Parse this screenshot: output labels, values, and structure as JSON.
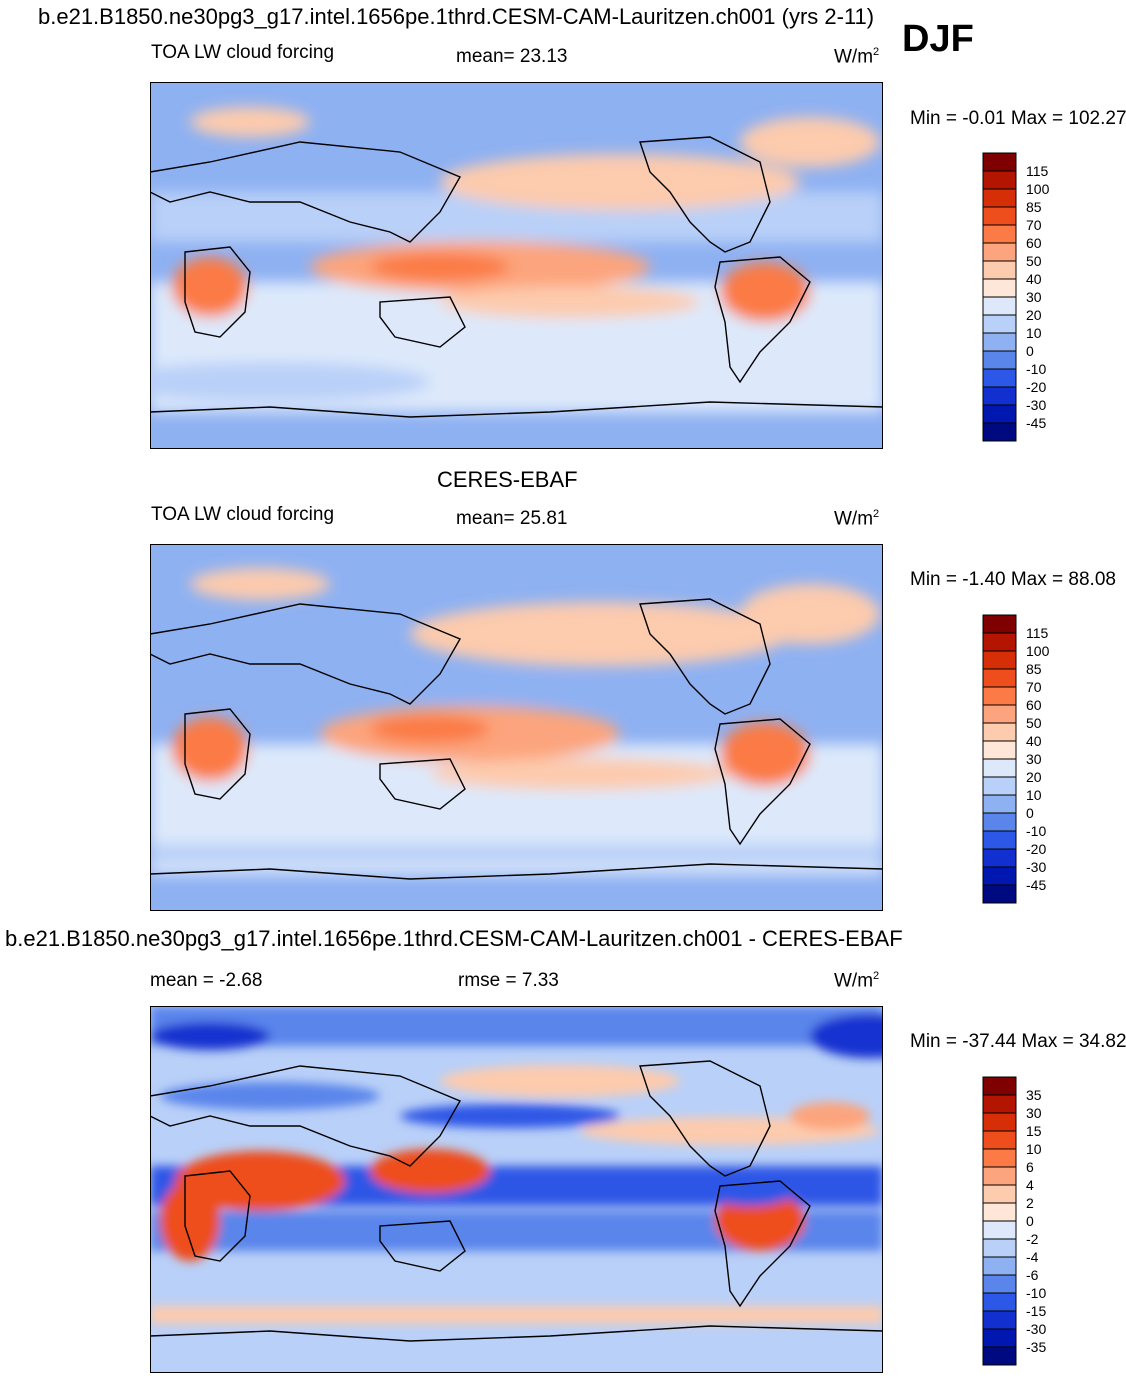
{
  "figure": {
    "main_title": "b.e21.B1850.ne30pg3_g17.intel.1656pe.1thrd.CESM-CAM-Lauritzen.ch001 (yrs 2-11)",
    "season": "DJF"
  },
  "panels": [
    {
      "id": "model",
      "header_title": "",
      "left_label": "TOA LW cloud forcing",
      "center_label": "mean=  23.13",
      "units_base": "W/m",
      "units_exp": "2",
      "stats": "Min =  -0.01 Max = 102.27",
      "colorbar_labels": [
        "115",
        "100",
        "85",
        "70",
        "60",
        "50",
        "40",
        "30",
        "20",
        "10",
        "0",
        "-10",
        "-20",
        "-30",
        "-45"
      ],
      "colorbar_colors": [
        "#7f0000",
        "#b31500",
        "#d62f08",
        "#ee4e1c",
        "#fb7a45",
        "#fca47d",
        "#fdcbad",
        "#fee6d8",
        "#dde9fb",
        "#b9d0f8",
        "#8eb1f2",
        "#5a85eb",
        "#2d57e6",
        "#1230d0",
        "#0018b0",
        "#000a80"
      ]
    },
    {
      "id": "obs",
      "header_title": "CERES-EBAF",
      "left_label": "TOA LW cloud forcing",
      "center_label": "mean=  25.81",
      "units_base": "W/m",
      "units_exp": "2",
      "stats": "Min =  -1.40 Max =  88.08",
      "colorbar_labels": [
        "115",
        "100",
        "85",
        "70",
        "60",
        "50",
        "40",
        "30",
        "20",
        "10",
        "0",
        "-10",
        "-20",
        "-30",
        "-45"
      ],
      "colorbar_colors": [
        "#7f0000",
        "#b31500",
        "#d62f08",
        "#ee4e1c",
        "#fb7a45",
        "#fca47d",
        "#fdcbad",
        "#fee6d8",
        "#dde9fb",
        "#b9d0f8",
        "#8eb1f2",
        "#5a85eb",
        "#2d57e6",
        "#1230d0",
        "#0018b0",
        "#000a80"
      ]
    },
    {
      "id": "diff",
      "header_title": "b.e21.B1850.ne30pg3_g17.intel.1656pe.1thrd.CESM-CAM-Lauritzen.ch001 - CERES-EBAF",
      "left_label": "mean =  -2.68",
      "center_label": "rmse =   7.33",
      "units_base": "W/m",
      "units_exp": "2",
      "stats": "Min = -37.44 Max =  34.82",
      "colorbar_labels": [
        "35",
        "30",
        "15",
        "10",
        "6",
        "4",
        "2",
        "0",
        "-2",
        "-4",
        "-6",
        "-10",
        "-15",
        "-30",
        "-35"
      ],
      "colorbar_colors": [
        "#7f0000",
        "#b31500",
        "#d62f08",
        "#ee4e1c",
        "#fb7a45",
        "#fca47d",
        "#fdcbad",
        "#fee6d8",
        "#dde9fb",
        "#b9d0f8",
        "#8eb1f2",
        "#5a85eb",
        "#2d57e6",
        "#1230d0",
        "#0018b0",
        "#000a80"
      ]
    }
  ]
}
